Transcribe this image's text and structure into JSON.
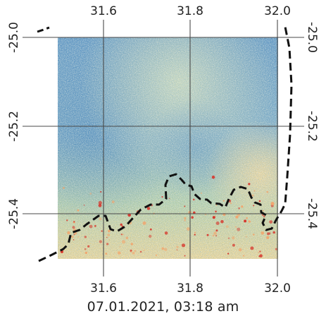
{
  "map": {
    "x_ticks": [
      "31.6",
      "31.8",
      "32.0"
    ],
    "y_ticks": [
      "-25.0",
      "-25.2",
      "-25.4"
    ],
    "colors": {
      "grid": "#4a4a4a",
      "boundary": "#111111",
      "raster_low": "#3b79b6",
      "raster_mid": "#e8e6a8",
      "raster_high": "#d73027"
    }
  },
  "caption": "07.01.2021, 03:18 am"
}
